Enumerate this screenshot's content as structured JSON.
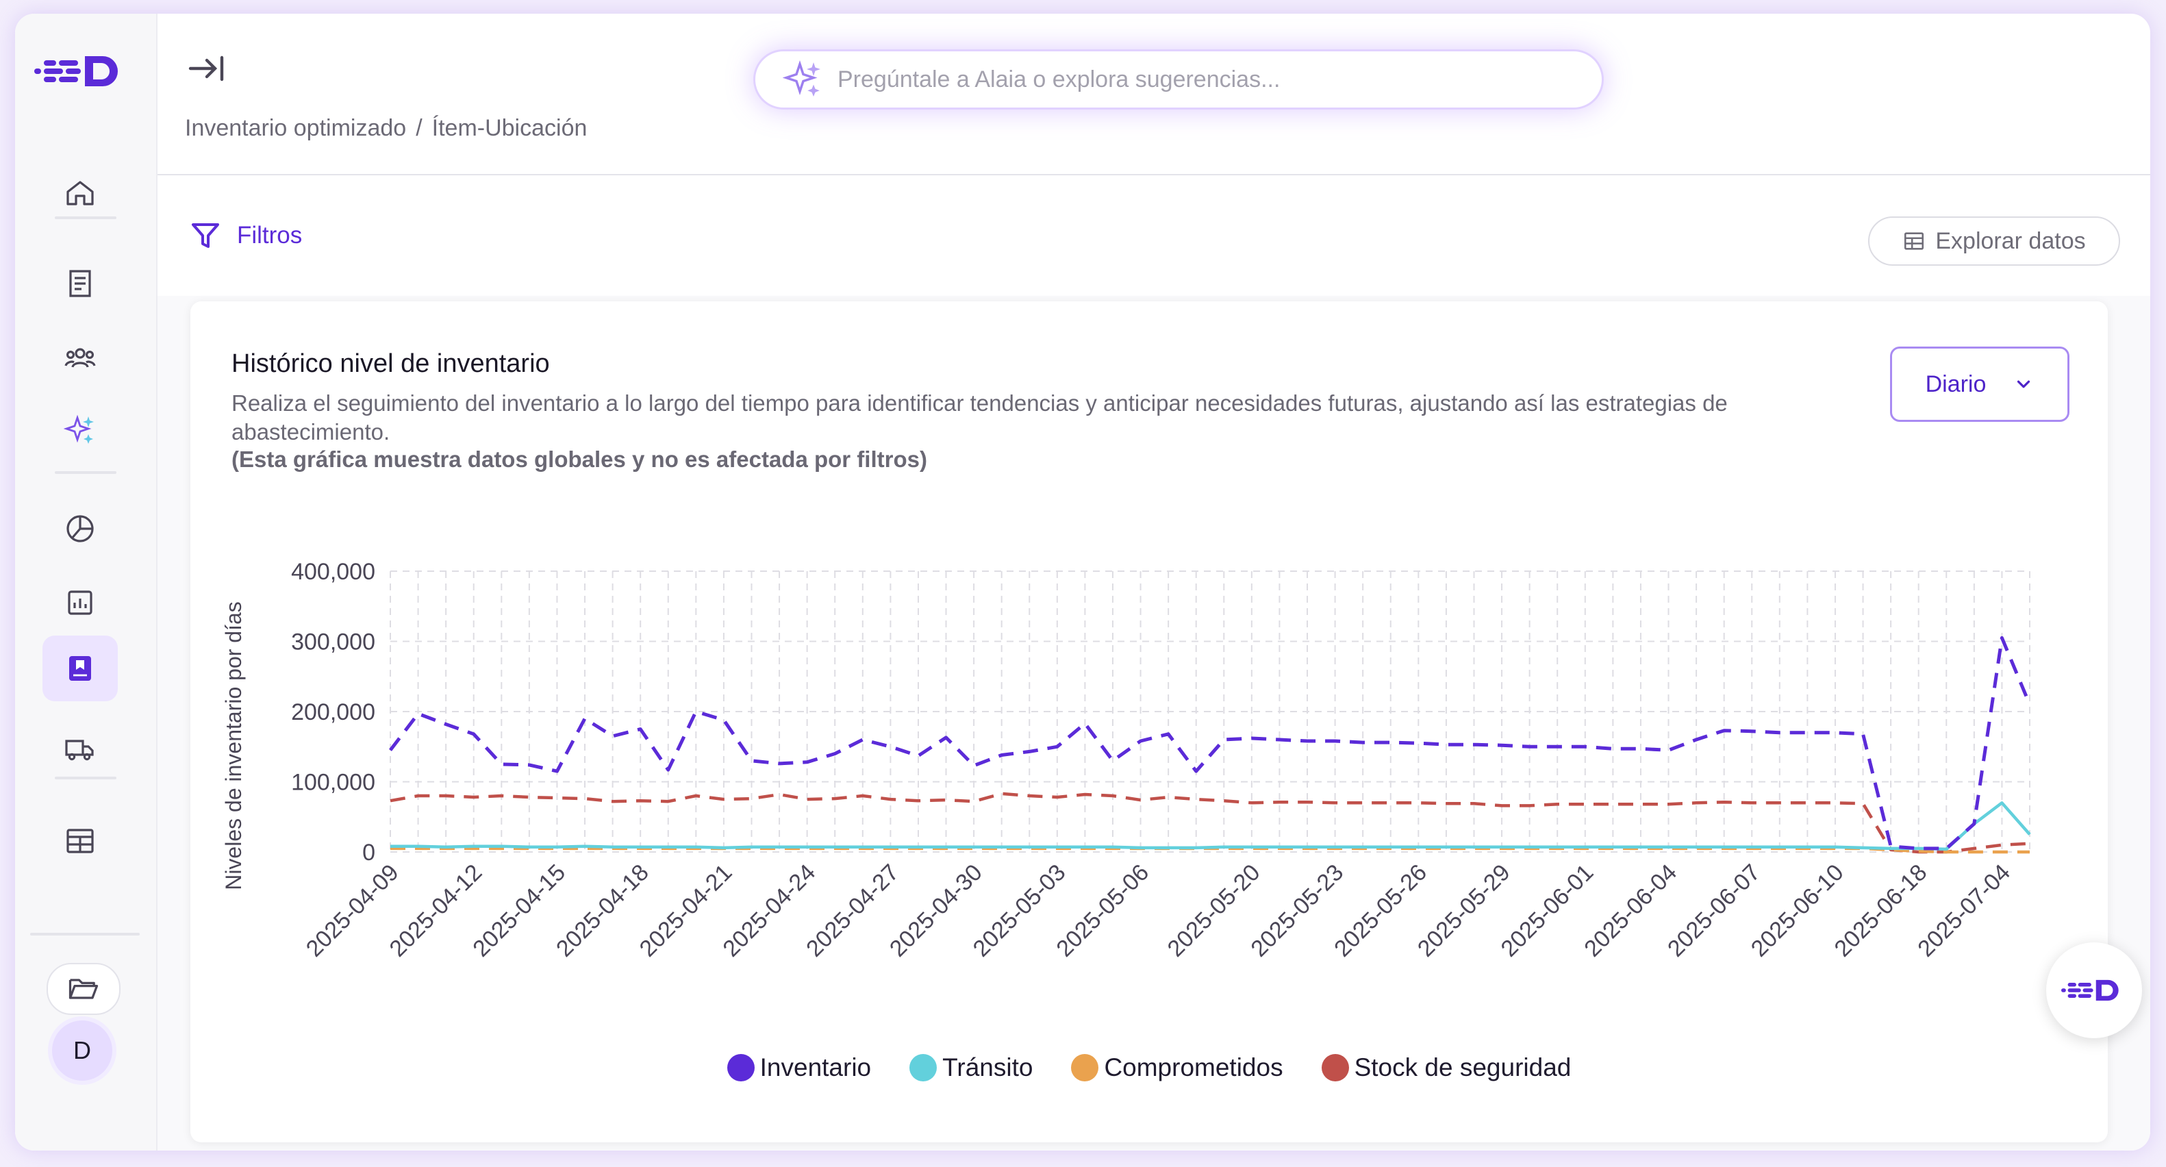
{
  "brand": {
    "accent": "#5b2bd8",
    "logo_name": "brand-logo"
  },
  "sidebar": {
    "items": [
      {
        "name": "home",
        "icon": "home-icon"
      },
      {
        "name": "orders",
        "icon": "receipt-icon"
      },
      {
        "name": "team",
        "icon": "users-icon"
      },
      {
        "name": "ai",
        "icon": "sparkles-icon"
      },
      {
        "name": "analytics",
        "icon": "pie-chart-icon"
      },
      {
        "name": "reports",
        "icon": "bar-chart-icon"
      },
      {
        "name": "inventory",
        "icon": "bookmark-icon",
        "active": true
      },
      {
        "name": "shipping",
        "icon": "truck-icon"
      },
      {
        "name": "tables",
        "icon": "table-icon"
      }
    ],
    "folder_icon": "folder-open-icon",
    "avatar_initial": "D"
  },
  "header": {
    "breadcrumb": [
      "Inventario optimizado",
      "/",
      "Ítem-Ubicación"
    ],
    "search_placeholder": "Pregúntale a Alaia o explora sugerencias..."
  },
  "toolbar": {
    "filters_label": "Filtros",
    "explore_label": "Explorar datos"
  },
  "card": {
    "title": "Histórico nivel de inventario",
    "description": "Realiza el seguimiento del inventario a lo largo del tiempo para identificar tendencias y anticipar necesidades futuras, ajustando así las estrategias de abastecimiento.",
    "note": "(Esta gráfica muestra datos globales y no es afectada por filtros)",
    "period": "Diario"
  },
  "chart_data": {
    "type": "line",
    "ylabel": "Niveles de inventario por días",
    "xlabel": "",
    "ylim": [
      0,
      400000
    ],
    "yticks": [
      0,
      100000,
      200000,
      300000,
      400000
    ],
    "ytick_labels": [
      "0",
      "100,000",
      "200,000",
      "300,000",
      "400,000"
    ],
    "x_tick_labels": [
      "2025-04-09",
      "2025-04-12",
      "2025-04-15",
      "2025-04-18",
      "2025-04-21",
      "2025-04-24",
      "2025-04-27",
      "2025-04-30",
      "2025-05-03",
      "2025-05-06",
      "2025-05-20",
      "2025-05-23",
      "2025-05-26",
      "2025-05-29",
      "2025-06-01",
      "2025-06-04",
      "2025-06-07",
      "2025-06-10",
      "2025-06-18",
      "2025-07-04"
    ],
    "grid": true,
    "legend_position": "bottom",
    "series": [
      {
        "name": "Inventario",
        "color": "#5b2bd8",
        "dashed": true,
        "values": [
          145000,
          197000,
          182000,
          168000,
          125000,
          124000,
          115000,
          190000,
          165000,
          175000,
          117000,
          200000,
          188000,
          130000,
          126000,
          128000,
          140000,
          160000,
          150000,
          137000,
          163000,
          123000,
          138000,
          143000,
          150000,
          183000,
          130000,
          158000,
          168000,
          115000,
          160000,
          162000,
          160000,
          158000,
          158000,
          156000,
          156000,
          155000,
          153000,
          153000,
          152000,
          150000,
          150000,
          150000,
          147000,
          147000,
          145000,
          160000,
          173000,
          172000,
          170000,
          170000,
          170000,
          168000,
          8000,
          5000,
          5000,
          40000,
          305000,
          210000
        ]
      },
      {
        "name": "Tránsito",
        "color": "#62d0dc",
        "dashed": false,
        "values": [
          8000,
          8000,
          7000,
          8000,
          8000,
          7000,
          7000,
          8000,
          7000,
          7000,
          7000,
          7000,
          6000,
          7000,
          7000,
          7000,
          7000,
          7000,
          7000,
          7000,
          7000,
          7000,
          7000,
          7000,
          7000,
          7000,
          7000,
          6000,
          6000,
          6000,
          7000,
          7000,
          7000,
          7000,
          7000,
          7000,
          7000,
          7000,
          7000,
          7000,
          7000,
          7000,
          7000,
          7000,
          7000,
          7000,
          7000,
          7000,
          7000,
          7000,
          7000,
          7000,
          7000,
          6000,
          5000,
          5000,
          4000,
          40000,
          70000,
          25000
        ]
      },
      {
        "name": "Comprometidos",
        "color": "#eaa24e",
        "dashed": true,
        "values": [
          5000,
          5000,
          5000,
          5000,
          5000,
          5000,
          5000,
          5000,
          5000,
          5000,
          5000,
          5000,
          5000,
          5000,
          5000,
          5000,
          5000,
          5000,
          5000,
          5000,
          5000,
          5000,
          5000,
          5000,
          5000,
          5000,
          5000,
          5000,
          5000,
          5000,
          5000,
          5000,
          5000,
          5000,
          5000,
          5000,
          5000,
          5000,
          5000,
          5000,
          5000,
          5000,
          5000,
          5000,
          5000,
          5000,
          5000,
          5000,
          5000,
          5000,
          5000,
          5000,
          5000,
          5000,
          3000,
          1000,
          0,
          0,
          0,
          0
        ]
      },
      {
        "name": "Stock de seguridad",
        "color": "#c0504a",
        "dashed": true,
        "values": [
          73000,
          80000,
          80000,
          78000,
          80000,
          78000,
          77000,
          76000,
          72000,
          73000,
          72000,
          80000,
          75000,
          76000,
          82000,
          75000,
          76000,
          80000,
          75000,
          73000,
          74000,
          72000,
          83000,
          80000,
          78000,
          82000,
          80000,
          74000,
          78000,
          75000,
          73000,
          70000,
          71000,
          71000,
          70000,
          70000,
          70000,
          70000,
          69000,
          69000,
          66000,
          66000,
          68000,
          68000,
          68000,
          68000,
          68000,
          70000,
          71000,
          70000,
          70000,
          70000,
          70000,
          69000,
          3000,
          0,
          0,
          5000,
          10000,
          12000
        ]
      }
    ]
  },
  "fab": {
    "icon": "brand-logo-icon"
  }
}
